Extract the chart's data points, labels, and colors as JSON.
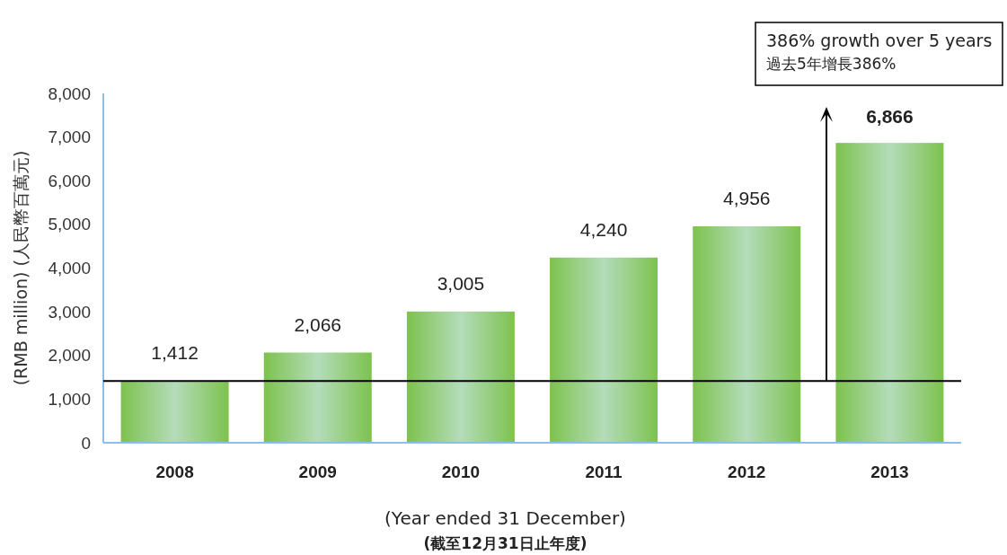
{
  "chart_data": {
    "type": "bar",
    "categories": [
      "2008",
      "2009",
      "2010",
      "2011",
      "2012",
      "2013"
    ],
    "values": [
      1412,
      2066,
      3005,
      4240,
      4956,
      6866
    ],
    "color": "#7dc24e",
    "ylim": [
      0,
      8000
    ],
    "yticks": [
      {
        "value": 0,
        "label": "0"
      },
      {
        "value": 1000,
        "label": "1,000"
      },
      {
        "value": 2000,
        "label": "2,000"
      },
      {
        "value": 3000,
        "label": "3,000"
      },
      {
        "value": 4000,
        "label": "4,000"
      },
      {
        "value": 5000,
        "label": "5,000"
      },
      {
        "value": 6000,
        "label": "6,000"
      },
      {
        "value": 7000,
        "label": "7,000"
      },
      {
        "value": 8000,
        "label": "8,000"
      }
    ],
    "value_labels": [
      "1,412",
      "2,066",
      "3,005",
      "4,240",
      "4,956",
      "6,866"
    ],
    "ylabel": "(RMB million) (人民幣百萬元)",
    "xlabel": "(Year ended 31 December)\n(截至12月31日止年度)",
    "ref_lines": [
      {
        "axis": "y",
        "value": 1412,
        "color": "#000000"
      }
    ],
    "annotations": [
      "386% growth over 5 years\n過去5年增長386%"
    ],
    "grid": false
  }
}
